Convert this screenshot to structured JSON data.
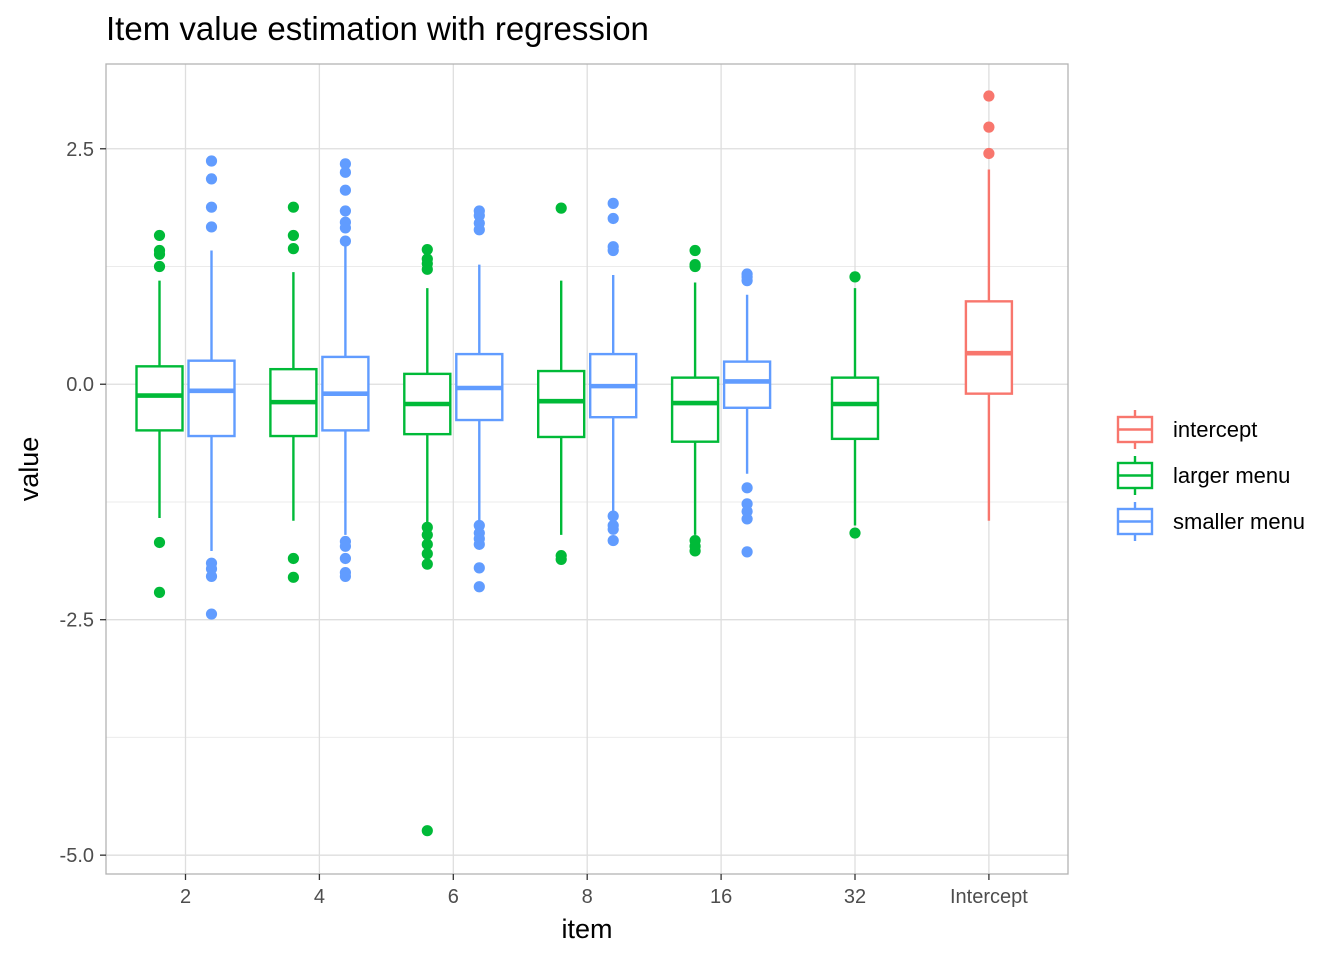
{
  "chart_data": {
    "type": "boxplot",
    "title": "Item value estimation with regression",
    "xlabel": "item",
    "ylabel": "value",
    "ylim": [
      -5.2,
      3.4
    ],
    "y_ticks": [
      2.5,
      0.0,
      -2.5,
      -5.0
    ],
    "y_tick_labels": [
      "2.5",
      "0.0",
      "-2.5",
      "-5.0"
    ],
    "categories": [
      "2",
      "4",
      "6",
      "8",
      "16",
      "32",
      "Intercept"
    ],
    "grid": true,
    "legend_position": "right",
    "series": [
      {
        "name": "intercept",
        "color": "#F8766D",
        "boxes": [
          {
            "category": "Intercept",
            "min": -1.45,
            "q1": -0.1,
            "median": 0.33,
            "q3": 0.88,
            "max": 2.28,
            "outliers": [
              2.45,
              2.73,
              3.06
            ]
          }
        ]
      },
      {
        "name": "larger menu",
        "color": "#00BA38",
        "boxes": [
          {
            "category": "2",
            "min": -1.42,
            "q1": -0.49,
            "median": -0.12,
            "q3": 0.19,
            "max": 1.1,
            "outliers": [
              1.58,
              1.42,
              1.38,
              1.25,
              -1.68,
              -2.21
            ]
          },
          {
            "category": "4",
            "min": -1.45,
            "q1": -0.55,
            "median": -0.19,
            "q3": 0.16,
            "max": 1.19,
            "outliers": [
              1.88,
              1.58,
              1.44,
              -1.85,
              -2.05
            ]
          },
          {
            "category": "6",
            "min": -1.5,
            "q1": -0.53,
            "median": -0.21,
            "q3": 0.11,
            "max": 1.02,
            "outliers": [
              1.43,
              1.33,
              1.28,
              1.22,
              -1.52,
              -1.6,
              -1.7,
              -1.8,
              -1.91,
              -4.74
            ]
          },
          {
            "category": "8",
            "min": -1.6,
            "q1": -0.56,
            "median": -0.18,
            "q3": 0.14,
            "max": 1.1,
            "outliers": [
              1.87,
              -1.82,
              -1.86
            ]
          },
          {
            "category": "16",
            "min": -1.6,
            "q1": -0.61,
            "median": -0.2,
            "q3": 0.07,
            "max": 1.08,
            "outliers": [
              1.42,
              1.27,
              1.25,
              -1.66,
              -1.72,
              -1.77
            ]
          },
          {
            "category": "32",
            "min": -1.5,
            "q1": -0.58,
            "median": -0.21,
            "q3": 0.07,
            "max": 1.02,
            "outliers": [
              1.14,
              -1.58
            ]
          }
        ]
      },
      {
        "name": "smaller menu",
        "color": "#619CFF",
        "boxes": [
          {
            "category": "2",
            "min": -1.77,
            "q1": -0.55,
            "median": -0.07,
            "q3": 0.25,
            "max": 1.42,
            "outliers": [
              2.37,
              2.18,
              1.88,
              1.67,
              -1.9,
              -1.96,
              -2.04,
              -2.44
            ]
          },
          {
            "category": "4",
            "min": -1.6,
            "q1": -0.49,
            "median": -0.1,
            "q3": 0.29,
            "max": 1.5,
            "outliers": [
              2.34,
              2.25,
              2.06,
              1.84,
              1.72,
              1.66,
              1.52,
              -1.67,
              -1.72,
              -1.85,
              -2.0,
              -2.04
            ]
          },
          {
            "category": "6",
            "min": -1.45,
            "q1": -0.38,
            "median": -0.04,
            "q3": 0.32,
            "max": 1.27,
            "outliers": [
              1.84,
              1.79,
              1.71,
              1.64,
              -1.5,
              -1.58,
              -1.64,
              -1.7,
              -1.95,
              -2.15
            ]
          },
          {
            "category": "8",
            "min": -1.35,
            "q1": -0.35,
            "median": -0.02,
            "q3": 0.32,
            "max": 1.16,
            "outliers": [
              1.92,
              1.76,
              1.46,
              1.42,
              -1.4,
              -1.5,
              -1.54,
              -1.66
            ]
          },
          {
            "category": "16",
            "min": -0.95,
            "q1": -0.25,
            "median": 0.03,
            "q3": 0.24,
            "max": 0.95,
            "outliers": [
              1.17,
              1.14,
              1.1,
              -1.1,
              -1.27,
              -1.35,
              -1.43,
              -1.78
            ]
          }
        ]
      }
    ]
  }
}
